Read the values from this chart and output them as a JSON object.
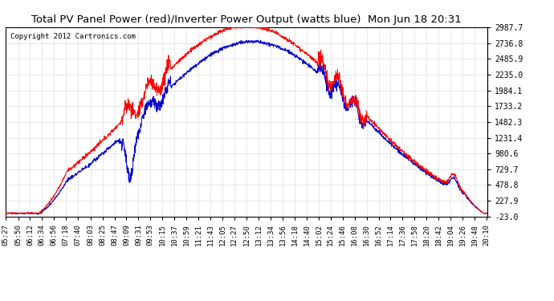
{
  "title": "Total PV Panel Power (red)/Inverter Power Output (watts blue)  Mon Jun 18 20:31",
  "copyright": "Copyright 2012 Cartronics.com",
  "yticks": [
    2987.7,
    2736.8,
    2485.9,
    2235.0,
    1984.1,
    1733.2,
    1482.3,
    1231.4,
    980.6,
    729.7,
    478.8,
    227.9,
    -23.0
  ],
  "ylim": [
    -23.0,
    2987.7
  ],
  "background_color": "#ffffff",
  "grid_color": "#aaaaaa",
  "pv_color": "#ff0000",
  "inv_color": "#0000cc",
  "title_fontsize": 9.5,
  "tick_fontsize": 7.0,
  "copyright_fontsize": 6.5,
  "total_minutes": 885,
  "xtick_labels": [
    "05:27",
    "05:50",
    "06:12",
    "06:34",
    "06:56",
    "07:18",
    "07:40",
    "08:03",
    "08:25",
    "08:47",
    "09:09",
    "09:31",
    "09:53",
    "10:15",
    "10:37",
    "10:59",
    "11:21",
    "11:43",
    "12:05",
    "12:27",
    "12:50",
    "13:12",
    "13:34",
    "13:56",
    "14:18",
    "14:40",
    "15:02",
    "15:24",
    "15:46",
    "16:08",
    "16:30",
    "16:52",
    "17:14",
    "17:36",
    "17:58",
    "18:20",
    "18:42",
    "19:04",
    "19:26",
    "19:48",
    "20:10"
  ]
}
